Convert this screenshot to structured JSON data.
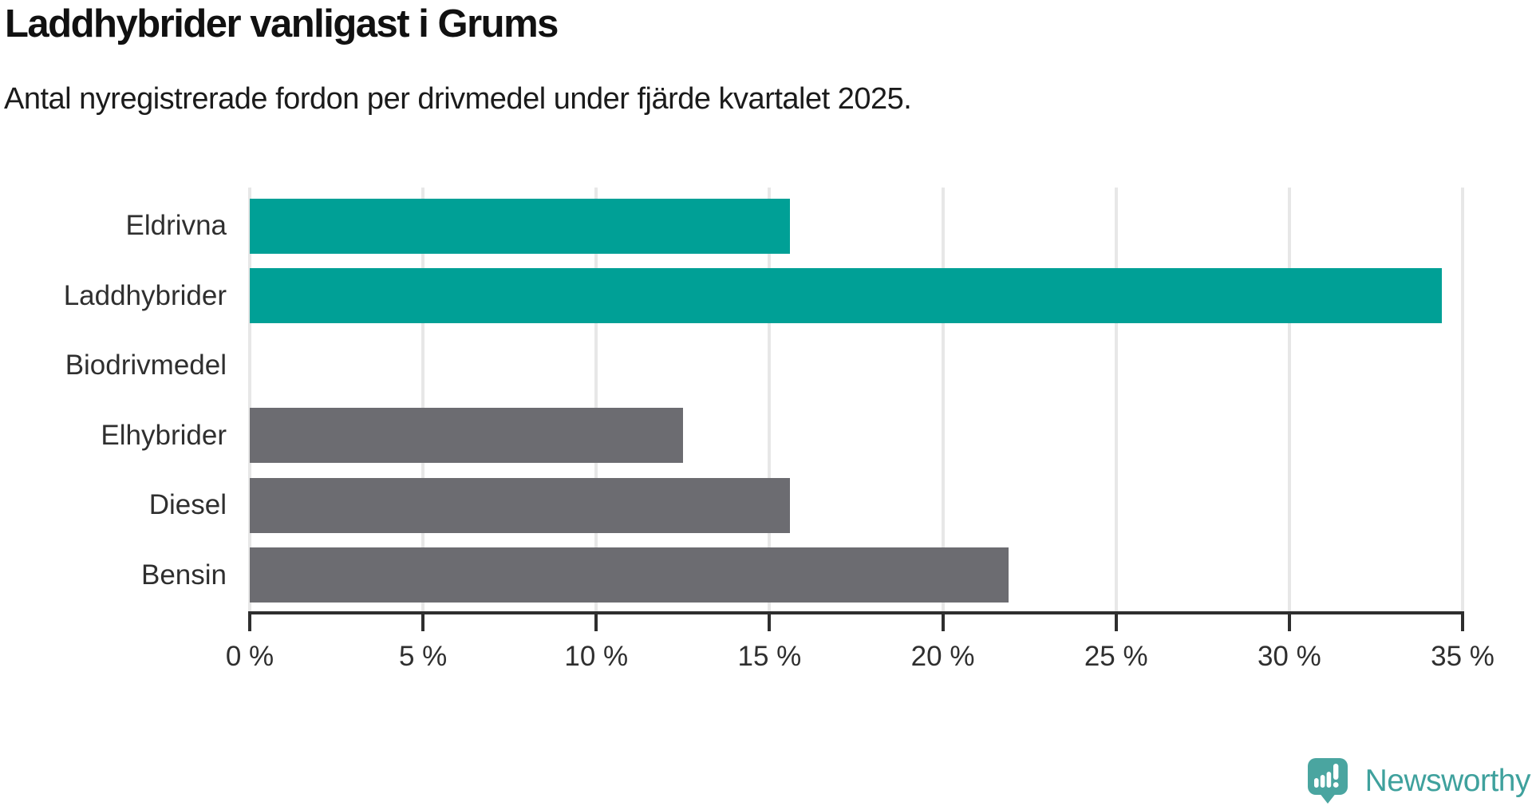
{
  "header": {
    "title": "Laddhybrider vanligast i Grums",
    "subtitle": "Antal nyregistrerade fordon per drivmedel under fjärde kvartalet 2025."
  },
  "chart_data": {
    "type": "bar",
    "orientation": "horizontal",
    "title": "Laddhybrider vanligast i Grums",
    "subtitle": "Antal nyregistrerade fordon per drivmedel under fjärde kvartalet 2025.",
    "categories": [
      "Eldrivna",
      "Laddhybrider",
      "Biodrivmedel",
      "Elhybrider",
      "Diesel",
      "Bensin"
    ],
    "values": [
      15.6,
      34.4,
      0,
      12.5,
      15.6,
      21.9
    ],
    "unit": "%",
    "xlim": [
      0,
      35
    ],
    "x_ticks": [
      0,
      5,
      10,
      15,
      20,
      25,
      30,
      35
    ],
    "x_tick_labels": [
      "0 %",
      "5 %",
      "10 %",
      "15 %",
      "20 %",
      "25 %",
      "30 %",
      "35 %"
    ],
    "bar_colors": [
      "#00a096",
      "#00a096",
      "#6c6c71",
      "#6c6c71",
      "#6c6c71",
      "#6c6c71"
    ],
    "highlight_color": "#00a096",
    "default_color": "#6c6c71",
    "grid": true,
    "grid_color": "#e7e7e7",
    "axis_color": "#2e2e2e",
    "legend": false
  },
  "footer": {
    "brand": "Newsworthy",
    "brand_color": "#3fa19d",
    "icon": "newsworthy-logo-icon",
    "icon_color": "#4aa5a0"
  }
}
